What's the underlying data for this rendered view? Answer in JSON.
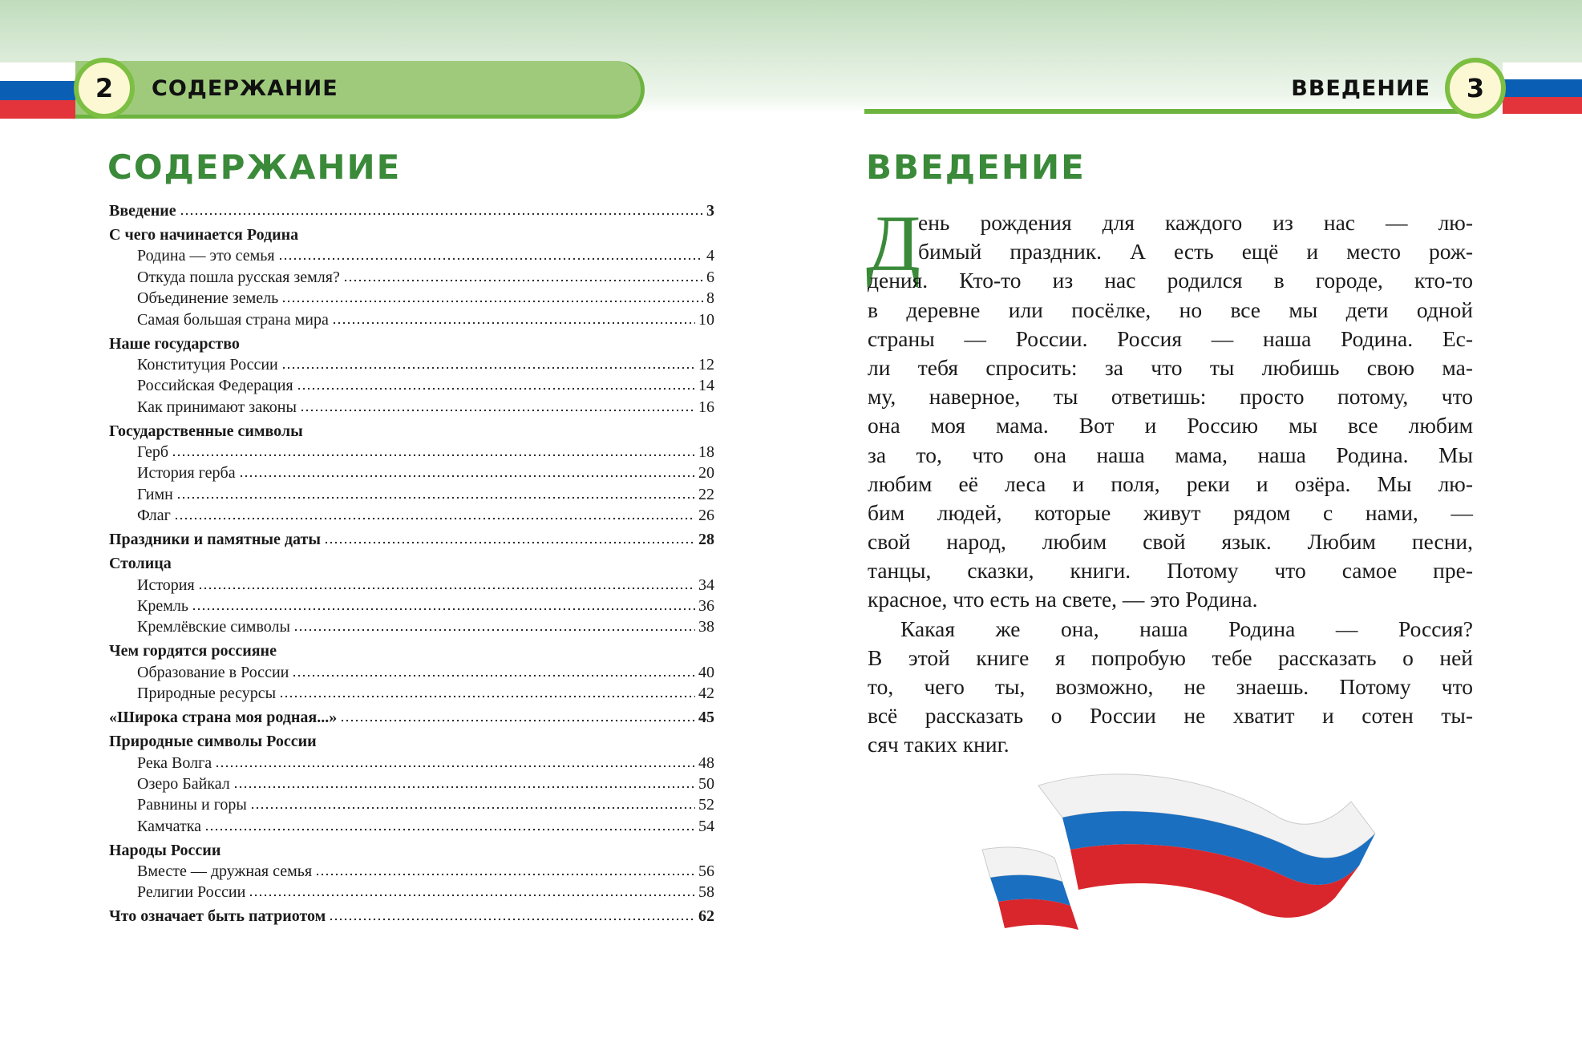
{
  "left_page": {
    "page_number": "2",
    "header_title": "СОДЕРЖАНИЕ",
    "heading": "СОДЕРЖАНИЕ",
    "toc": [
      {
        "title": "Введение",
        "page": "3",
        "level": "top"
      },
      {
        "title": "С чего начинается Родина",
        "page": "",
        "level": "head"
      },
      {
        "title": "Родина — это семья",
        "page": "4",
        "level": "sub"
      },
      {
        "title": "Откуда пошла русская земля?",
        "page": "6",
        "level": "sub"
      },
      {
        "title": "Объединение земель",
        "page": "8",
        "level": "sub"
      },
      {
        "title": "Самая большая страна мира",
        "page": "10",
        "level": "sub"
      },
      {
        "title": "Наше государство",
        "page": "",
        "level": "head"
      },
      {
        "title": "Конституция России",
        "page": "12",
        "level": "sub"
      },
      {
        "title": "Российская Федерация",
        "page": "14",
        "level": "sub"
      },
      {
        "title": "Как принимают законы",
        "page": "16",
        "level": "sub"
      },
      {
        "title": "Государственные символы",
        "page": "",
        "level": "head"
      },
      {
        "title": "Герб",
        "page": "18",
        "level": "sub"
      },
      {
        "title": "История герба",
        "page": "20",
        "level": "sub"
      },
      {
        "title": "Гимн",
        "page": "22",
        "level": "sub"
      },
      {
        "title": "Флаг",
        "page": "26",
        "level": "sub"
      },
      {
        "title": "Праздники и памятные даты",
        "page": "28",
        "level": "head"
      },
      {
        "title": "Столица",
        "page": "",
        "level": "head"
      },
      {
        "title": "История",
        "page": "34",
        "level": "sub"
      },
      {
        "title": "Кремль",
        "page": "36",
        "level": "sub"
      },
      {
        "title": "Кремлёвские символы",
        "page": "38",
        "level": "sub"
      },
      {
        "title": "Чем гордятся россияне",
        "page": "",
        "level": "head"
      },
      {
        "title": "Образование в России",
        "page": "40",
        "level": "sub"
      },
      {
        "title": "Природные ресурсы",
        "page": "42",
        "level": "sub"
      },
      {
        "title": "«Широка страна моя родная...»",
        "page": "45",
        "level": "head"
      },
      {
        "title": "Природные символы России",
        "page": "",
        "level": "head"
      },
      {
        "title": "Река Волга",
        "page": "48",
        "level": "sub"
      },
      {
        "title": "Озеро Байкал",
        "page": "50",
        "level": "sub"
      },
      {
        "title": "Равнины и горы",
        "page": "52",
        "level": "sub"
      },
      {
        "title": "Камчатка",
        "page": "54",
        "level": "sub"
      },
      {
        "title": "Народы России",
        "page": "",
        "level": "head"
      },
      {
        "title": "Вместе — дружная семья",
        "page": "56",
        "level": "sub"
      },
      {
        "title": "Религии России",
        "page": "58",
        "level": "sub"
      },
      {
        "title": "Что означает быть патриотом",
        "page": "62",
        "level": "head"
      }
    ]
  },
  "right_page": {
    "page_number": "3",
    "header_title": "ВВЕДЕНИЕ",
    "heading": "ВВЕДЕНИЕ",
    "drop_cap": "Д",
    "lines": [
      "ень рождения для каждого из нас — лю-",
      "бимый праздник. А есть ещё и место рож-",
      "дения. Кто-то из нас родился в городе, кто-то",
      "в деревне или посёлке, но все мы дети одной",
      "страны — России. Россия — наша Родина. Ес-",
      "ли тебя спросить: за что ты любишь свою ма-",
      "му, наверное, ты ответишь: просто потому, что",
      "она моя мама. Вот и Россию мы все любим",
      "за то, что она наша мама, наша Родина. Мы",
      "любим её леса и поля, реки и озёра. Мы лю-",
      "бим людей, которые живут рядом с нами, —",
      "свой народ, любим свой язык. Любим песни,",
      "танцы, сказки, книги. Потому что самое пре-",
      "красное, что есть на свете, — это Родина.",
      "Какая же она, наша Родина — Россия?",
      "В этой книге я попробую тебе рассказать о ней",
      "то, чего ты, возможно, не знаешь. Потому что",
      "всё рассказать о России не хватит и сотен ты-",
      "сяч таких книг."
    ]
  },
  "colors": {
    "accent_green": "#3a8a3a",
    "pill_green": "#9fca7c",
    "flag_white": "#ffffff",
    "flag_blue": "#0a5fb4",
    "flag_red": "#e2343a"
  },
  "icons": {
    "ribbon": "russian-flag-ribbon-illustration"
  }
}
